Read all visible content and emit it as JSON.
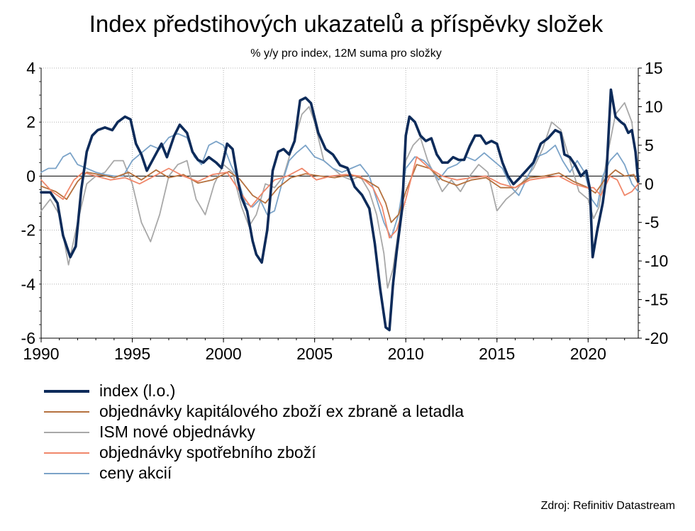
{
  "chart_data": {
    "type": "line",
    "title": "Index předstihových ukazatelů a příspěvky složek",
    "subtitle": "% y/y pro index, 12M suma pro složky",
    "x_ticks": [
      "1990",
      "1995",
      "2000",
      "2005",
      "2010",
      "2015",
      "2020"
    ],
    "xlim": [
      1990,
      2022.75
    ],
    "y_left": {
      "ticks": [
        "4",
        "2",
        "0",
        "-2",
        "-4",
        "-6"
      ],
      "lim": [
        -6,
        4
      ]
    },
    "y_right": {
      "ticks": [
        "15",
        "10",
        "5",
        "0",
        "-5",
        "-10",
        "-15",
        "-20"
      ],
      "lim": [
        -20,
        15
      ]
    },
    "grid": true,
    "legend_position": "bottom",
    "source": "Zdroj: Refinitiv Datastream",
    "series": [
      {
        "name": "index (l.o.)",
        "axis": "left",
        "color": "#0d2b5a",
        "width": 3.6,
        "x": [
          1990.0,
          1990.5,
          1990.9,
          1991.2,
          1991.6,
          1991.9,
          1992.2,
          1992.5,
          1992.8,
          1993.1,
          1993.5,
          1993.9,
          1994.2,
          1994.6,
          1994.9,
          1995.2,
          1995.5,
          1995.8,
          1996.2,
          1996.6,
          1996.9,
          1997.3,
          1997.6,
          1998.0,
          1998.3,
          1998.6,
          1998.9,
          1999.2,
          1999.6,
          1999.9,
          2000.2,
          2000.5,
          2000.8,
          2001.0,
          2001.3,
          2001.6,
          2001.8,
          2002.1,
          2002.4,
          2002.7,
          2003.0,
          2003.3,
          2003.6,
          2003.9,
          2004.2,
          2004.5,
          2004.8,
          2005.2,
          2005.6,
          2006.0,
          2006.4,
          2006.8,
          2007.2,
          2007.6,
          2008.0,
          2008.3,
          2008.6,
          2008.9,
          2009.1,
          2009.3,
          2009.5,
          2009.8,
          2010.0,
          2010.2,
          2010.5,
          2010.8,
          2011.1,
          2011.4,
          2011.7,
          2012.0,
          2012.3,
          2012.6,
          2012.9,
          2013.2,
          2013.5,
          2013.8,
          2014.1,
          2014.4,
          2014.7,
          2015.0,
          2015.3,
          2015.6,
          2015.9,
          2016.2,
          2016.6,
          2017.0,
          2017.4,
          2017.8,
          2018.2,
          2018.5,
          2018.7,
          2019.0,
          2019.3,
          2019.6,
          2019.9,
          2020.1,
          2020.25,
          2020.5,
          2020.8,
          2021.0,
          2021.25,
          2021.5,
          2021.8,
          2022.0,
          2022.2,
          2022.4,
          2022.6,
          2022.75
        ],
        "y": [
          -0.6,
          -0.6,
          -1.0,
          -2.2,
          -3.0,
          -2.6,
          -0.5,
          0.9,
          1.5,
          1.7,
          1.8,
          1.7,
          2.0,
          2.2,
          2.1,
          1.2,
          0.8,
          0.2,
          0.7,
          1.2,
          0.7,
          1.5,
          1.9,
          1.6,
          0.9,
          0.6,
          0.5,
          0.7,
          0.5,
          0.3,
          1.2,
          1.0,
          -0.2,
          -0.8,
          -1.3,
          -2.4,
          -2.9,
          -3.2,
          -2.0,
          0.2,
          0.9,
          1.0,
          0.8,
          1.3,
          2.8,
          2.9,
          2.7,
          1.6,
          1.0,
          0.8,
          0.4,
          0.3,
          -0.4,
          -0.7,
          -1.2,
          -2.5,
          -4.2,
          -5.6,
          -5.7,
          -4.0,
          -2.8,
          -1.2,
          1.5,
          2.2,
          2.0,
          1.5,
          1.3,
          1.4,
          0.8,
          0.5,
          0.5,
          0.7,
          0.6,
          0.6,
          1.1,
          1.5,
          1.5,
          1.2,
          1.3,
          1.2,
          0.5,
          0.0,
          -0.3,
          -0.1,
          0.2,
          0.5,
          1.2,
          1.4,
          1.7,
          1.6,
          0.8,
          0.7,
          0.4,
          0.0,
          0.2,
          -0.5,
          -3.0,
          -2.0,
          -1.0,
          0.0,
          3.2,
          2.2,
          2.0,
          1.9,
          1.6,
          1.7,
          0.9,
          -0.2
        ]
      },
      {
        "name": "objednávky kapitálového zboží ex zbraně a letadla",
        "axis": "right",
        "color": "#b5713e",
        "width": 1.8,
        "x": [
          1990.0,
          1990.8,
          1991.4,
          1992.0,
          1992.5,
          1993.2,
          1994.0,
          1994.8,
          1995.5,
          1996.3,
          1997.0,
          1997.8,
          1998.6,
          1999.4,
          2000.3,
          2000.9,
          2001.6,
          2002.3,
          2003.0,
          2003.7,
          2004.5,
          2005.3,
          2006.1,
          2007.0,
          2007.8,
          2008.5,
          2008.9,
          2009.2,
          2009.6,
          2010.0,
          2010.6,
          2011.3,
          2012.0,
          2012.8,
          2013.6,
          2014.4,
          2015.2,
          2016.0,
          2016.8,
          2017.6,
          2018.4,
          2019.2,
          2019.9,
          2020.4,
          2020.9,
          2021.5,
          2022.0,
          2022.5,
          2022.75
        ],
        "y": [
          -0.3,
          -1.0,
          -2.0,
          0.3,
          1.5,
          1.2,
          0.8,
          1.5,
          0.5,
          1.8,
          0.8,
          1.2,
          0.1,
          0.5,
          1.6,
          0.6,
          -1.5,
          -2.5,
          -0.5,
          0.8,
          1.3,
          1.0,
          0.8,
          1.2,
          0.5,
          -0.5,
          -2.5,
          -5.0,
          -4.0,
          -1.0,
          2.5,
          2.0,
          0.5,
          -0.2,
          0.5,
          0.8,
          -0.5,
          -0.5,
          0.8,
          1.0,
          1.4,
          0.3,
          -0.4,
          -1.2,
          0.5,
          1.8,
          1.0,
          1.2,
          0.0
        ]
      },
      {
        "name": "ISM nové objednávky",
        "axis": "right",
        "color": "#a8a8a8",
        "width": 1.8,
        "x": [
          1990.0,
          1990.5,
          1991.0,
          1991.5,
          1992.0,
          1992.5,
          1993.0,
          1993.5,
          1994.0,
          1994.5,
          1995.0,
          1995.5,
          1996.0,
          1996.5,
          1997.0,
          1997.5,
          1998.0,
          1998.5,
          1999.0,
          1999.5,
          2000.0,
          2000.5,
          2001.0,
          2001.4,
          2001.8,
          2002.3,
          2002.8,
          2003.3,
          2003.8,
          2004.3,
          2004.7,
          2005.0,
          2005.5,
          2006.0,
          2006.5,
          2007.0,
          2007.5,
          2008.0,
          2008.4,
          2008.8,
          2009.0,
          2009.3,
          2009.6,
          2010.0,
          2010.4,
          2010.8,
          2011.2,
          2011.6,
          2012.0,
          2012.5,
          2013.0,
          2013.5,
          2014.0,
          2014.5,
          2015.0,
          2015.5,
          2016.0,
          2016.5,
          2017.0,
          2017.5,
          2018.0,
          2018.5,
          2019.0,
          2019.5,
          2020.0,
          2020.3,
          2020.6,
          2021.0,
          2021.5,
          2022.0,
          2022.4,
          2022.75
        ],
        "y": [
          -3.5,
          -2.0,
          -4.0,
          -10.5,
          -5.0,
          0.0,
          1.0,
          1.5,
          3.0,
          3.0,
          0.0,
          -5.0,
          -7.5,
          -4.0,
          1.0,
          2.5,
          3.0,
          -2.0,
          -4.0,
          0.0,
          2.5,
          1.5,
          -3.0,
          -5.5,
          -4.0,
          0.0,
          -0.5,
          1.0,
          5.0,
          9.0,
          10.0,
          8.0,
          3.0,
          2.0,
          1.0,
          0.5,
          1.0,
          -1.0,
          -4.0,
          -9.0,
          -13.5,
          -11.0,
          -6.0,
          3.0,
          5.0,
          6.0,
          3.0,
          1.0,
          -1.0,
          0.5,
          -1.0,
          1.0,
          2.5,
          1.5,
          -3.5,
          -2.0,
          -1.0,
          0.5,
          2.0,
          4.5,
          8.0,
          7.0,
          3.0,
          -1.0,
          -2.0,
          -4.5,
          -3.0,
          3.0,
          9.0,
          10.5,
          8.0,
          0.0
        ]
      },
      {
        "name": "objednávky spotřebního zboží",
        "axis": "right",
        "color": "#f0876a",
        "width": 1.8,
        "x": [
          1990.0,
          1990.6,
          1991.2,
          1991.8,
          1992.3,
          1993.0,
          1993.8,
          1994.6,
          1995.4,
          1996.2,
          1997.0,
          1997.8,
          1998.6,
          1999.4,
          2000.2,
          2000.9,
          2001.5,
          2002.2,
          2002.8,
          2003.5,
          2004.3,
          2005.1,
          2005.9,
          2006.7,
          2007.5,
          2008.2,
          2008.7,
          2009.1,
          2009.5,
          2010.0,
          2010.6,
          2011.3,
          2012.0,
          2012.8,
          2013.6,
          2014.4,
          2015.2,
          2016.0,
          2016.8,
          2017.6,
          2018.4,
          2019.2,
          2019.9,
          2020.3,
          2020.7,
          2021.2,
          2021.6,
          2022.0,
          2022.4,
          2022.75
        ],
        "y": [
          0.5,
          -1.0,
          -2.0,
          0.5,
          1.5,
          1.0,
          0.5,
          0.8,
          0.0,
          1.0,
          2.0,
          1.0,
          0.3,
          1.2,
          1.5,
          -1.0,
          -3.0,
          -1.0,
          0.5,
          1.0,
          2.0,
          0.5,
          1.0,
          1.2,
          1.0,
          -0.5,
          -3.0,
          -7.0,
          -6.0,
          -2.0,
          3.5,
          2.0,
          1.0,
          0.5,
          0.8,
          1.0,
          0.0,
          -0.5,
          0.5,
          0.8,
          1.0,
          0.0,
          -0.5,
          -0.5,
          -1.5,
          1.0,
          0.5,
          -1.5,
          -1.0,
          0.0
        ]
      },
      {
        "name": "ceny akcií",
        "axis": "right",
        "color": "#7ba3c8",
        "width": 1.8,
        "x": [
          1990.0,
          1990.4,
          1990.8,
          1991.2,
          1991.6,
          1992.0,
          1992.5,
          1993.0,
          1993.5,
          1994.0,
          1994.5,
          1995.0,
          1995.5,
          1996.0,
          1996.5,
          1997.0,
          1997.5,
          1998.0,
          1998.4,
          1998.8,
          1999.2,
          1999.6,
          2000.0,
          2000.4,
          2000.8,
          2001.2,
          2001.6,
          2002.0,
          2002.4,
          2002.8,
          2003.2,
          2003.6,
          2004.0,
          2004.5,
          2005.0,
          2005.5,
          2006.0,
          2006.5,
          2007.0,
          2007.5,
          2008.0,
          2008.4,
          2008.8,
          2009.2,
          2009.6,
          2010.0,
          2010.5,
          2011.0,
          2011.4,
          2011.8,
          2012.3,
          2012.8,
          2013.3,
          2013.8,
          2014.3,
          2014.8,
          2015.3,
          2015.8,
          2016.2,
          2016.7,
          2017.2,
          2017.7,
          2018.2,
          2018.6,
          2019.0,
          2019.4,
          2019.8,
          2020.2,
          2020.5,
          2020.8,
          2021.2,
          2021.6,
          2022.0,
          2022.4,
          2022.75
        ],
        "y": [
          1.5,
          2.0,
          2.0,
          3.5,
          4.0,
          2.5,
          2.0,
          1.5,
          1.2,
          1.0,
          1.0,
          3.0,
          4.0,
          5.0,
          4.5,
          6.0,
          6.5,
          6.0,
          3.5,
          2.5,
          5.0,
          5.5,
          5.0,
          2.5,
          0.5,
          -2.5,
          -3.0,
          -2.0,
          -4.0,
          -3.5,
          0.0,
          3.0,
          4.0,
          5.0,
          3.5,
          3.0,
          2.0,
          1.5,
          2.0,
          2.5,
          1.0,
          -2.0,
          -5.0,
          -7.0,
          -4.0,
          2.0,
          3.5,
          3.0,
          2.0,
          0.5,
          2.0,
          2.5,
          3.5,
          3.0,
          4.0,
          3.0,
          2.0,
          -0.5,
          -1.5,
          1.0,
          3.5,
          4.0,
          5.0,
          3.0,
          1.5,
          3.0,
          1.5,
          -2.0,
          -3.0,
          1.0,
          3.0,
          4.0,
          2.5,
          0.0,
          -1.0
        ]
      }
    ]
  }
}
